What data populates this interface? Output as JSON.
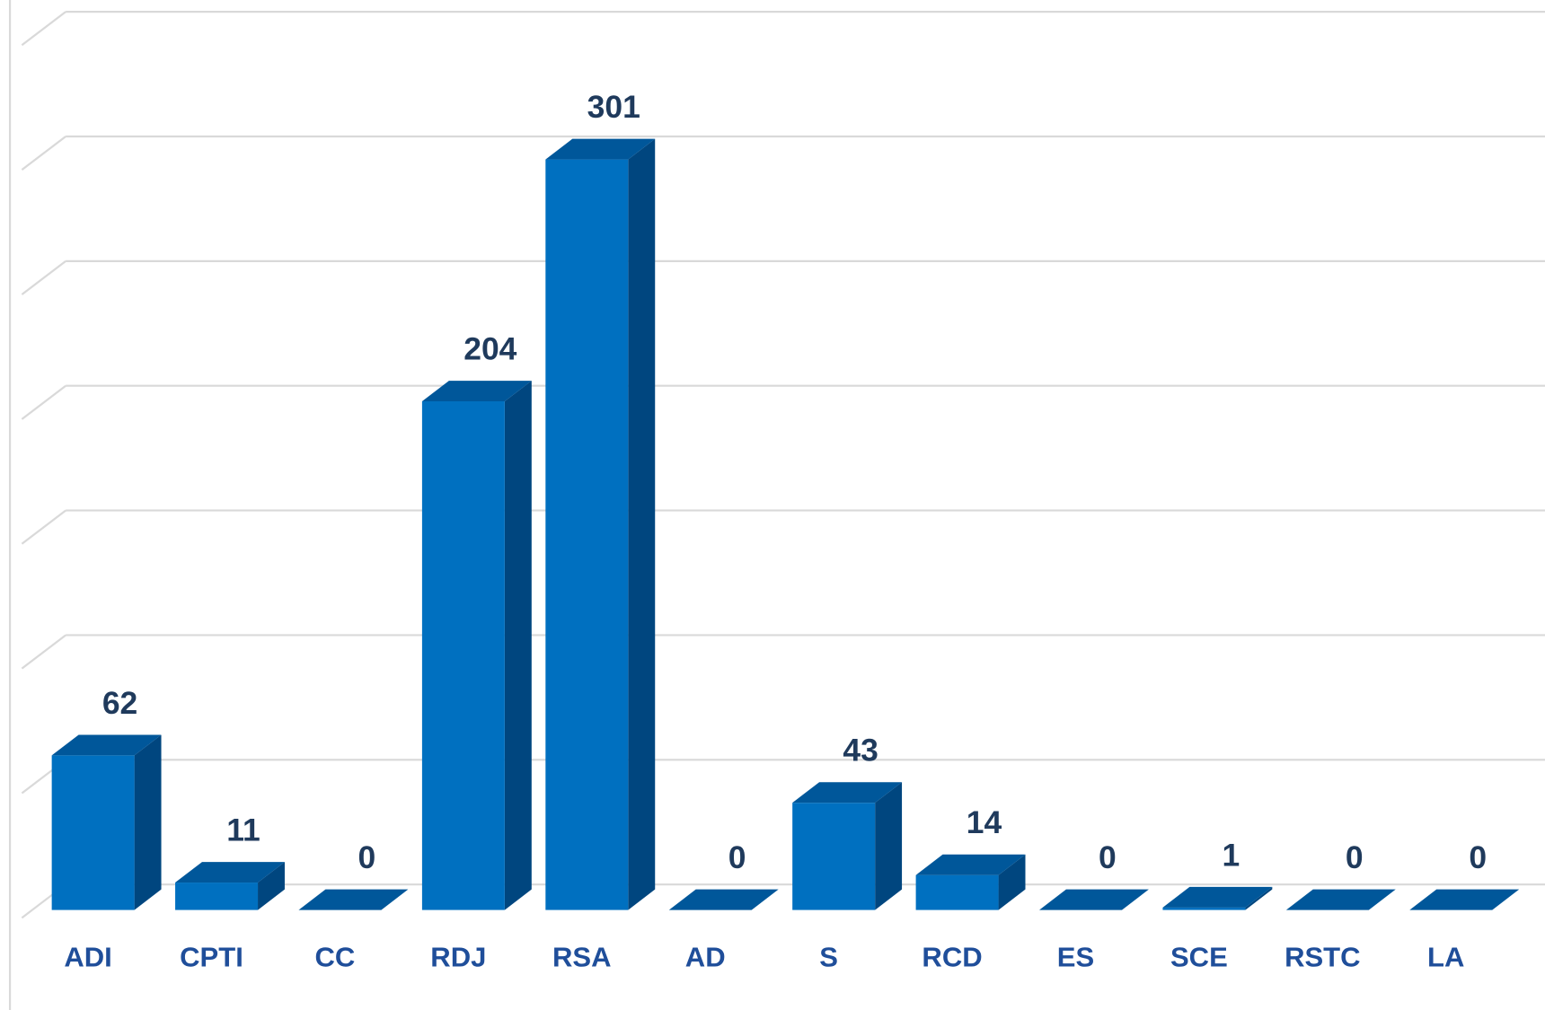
{
  "chart_data": {
    "type": "bar3d",
    "categories": [
      "ADI",
      "CPTI",
      "CC",
      "RDJ",
      "RSA",
      "AD",
      "S",
      "RCD",
      "ES",
      "SCE",
      "RSTC",
      "LA"
    ],
    "values": [
      62,
      11,
      0,
      204,
      301,
      0,
      43,
      14,
      0,
      1,
      0,
      0
    ],
    "color": "#0070c0",
    "side_color": "#00467f",
    "top_color": "#00579a",
    "ylim": [
      0,
      350
    ],
    "yticks": [
      0,
      50,
      100,
      150,
      200,
      250,
      300,
      350
    ],
    "grid": true
  }
}
